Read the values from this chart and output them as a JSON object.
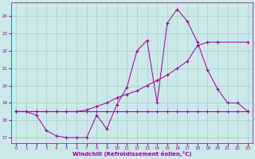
{
  "xlabel": "Windchill (Refroidissement éolien,°C)",
  "xlim": [
    -0.5,
    23.5
  ],
  "ylim": [
    16.7,
    24.8
  ],
  "yticks": [
    17,
    18,
    19,
    20,
    21,
    22,
    23,
    24
  ],
  "xticks": [
    0,
    1,
    2,
    3,
    4,
    5,
    6,
    7,
    8,
    9,
    10,
    11,
    12,
    13,
    14,
    15,
    16,
    17,
    18,
    19,
    20,
    21,
    22,
    23
  ],
  "background_color": "#cce8e8",
  "grid_color": "#aacccc",
  "line_color": "#990099",
  "line1_x": [
    0,
    1,
    2,
    3,
    4,
    5,
    6,
    7,
    8,
    9,
    10,
    11,
    12,
    13,
    14,
    15,
    16,
    17,
    18,
    19,
    20,
    21,
    22,
    23
  ],
  "line1_y": [
    18.5,
    18.5,
    18.3,
    17.4,
    17.1,
    17.0,
    17.0,
    17.0,
    18.3,
    17.5,
    18.9,
    19.9,
    22.0,
    22.6,
    19.0,
    23.6,
    24.4,
    23.7,
    22.5,
    20.9,
    19.8,
    19.0,
    19.0,
    18.5
  ],
  "line2_x": [
    0,
    1,
    2,
    3,
    4,
    5,
    6,
    7,
    8,
    9,
    10,
    11,
    12,
    13,
    14,
    15,
    16,
    17,
    18,
    19,
    20,
    23
  ],
  "line2_y": [
    18.5,
    18.5,
    18.5,
    18.5,
    18.5,
    18.5,
    18.5,
    18.6,
    18.8,
    19.0,
    19.3,
    19.5,
    19.7,
    20.0,
    20.3,
    20.6,
    21.0,
    21.4,
    22.3,
    22.5,
    22.5,
    22.5
  ],
  "line3_x": [
    0,
    1,
    2,
    3,
    4,
    5,
    6,
    7,
    8,
    9,
    10,
    11,
    12,
    13,
    14,
    15,
    16,
    17,
    18,
    19,
    20,
    21,
    22,
    23
  ],
  "line3_y": [
    18.5,
    18.5,
    18.5,
    18.5,
    18.5,
    18.5,
    18.5,
    18.5,
    18.5,
    18.5,
    18.5,
    18.5,
    18.5,
    18.5,
    18.5,
    18.5,
    18.5,
    18.5,
    18.5,
    18.5,
    18.5,
    18.5,
    18.5,
    18.5
  ]
}
